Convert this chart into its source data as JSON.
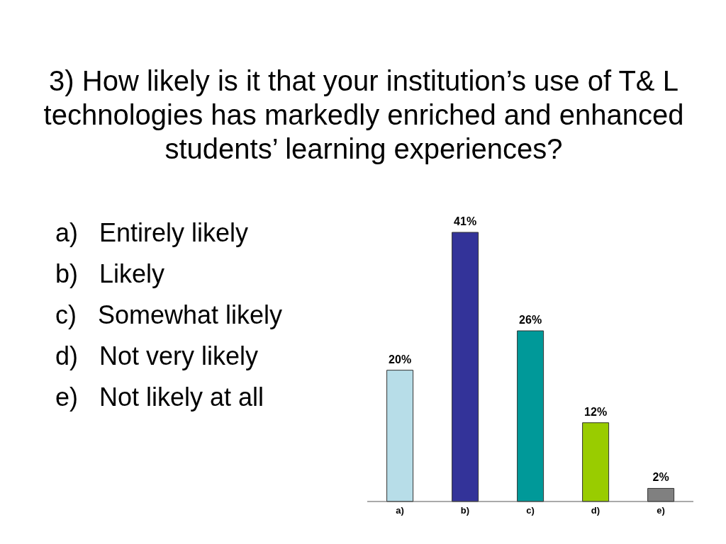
{
  "chart_data": {
    "type": "bar",
    "title": "3) How likely is it that your institution’s use of T& L technologies has markedly enriched and enhanced students’ learning experiences?",
    "categories": [
      "a)",
      "b)",
      "c)",
      "d)",
      "e)"
    ],
    "values": [
      20,
      41,
      26,
      12,
      2
    ],
    "value_labels": [
      "20%",
      "41%",
      "26%",
      "12%",
      "2%"
    ],
    "colors": [
      "#b7dde8",
      "#333399",
      "#009999",
      "#99cc00",
      "#808080"
    ],
    "annotations": [
      "a)   Entirely likely",
      "b)   Likely",
      "c)   Somewhat likely",
      "d)   Not very likely",
      "e)   Not likely at all"
    ]
  }
}
